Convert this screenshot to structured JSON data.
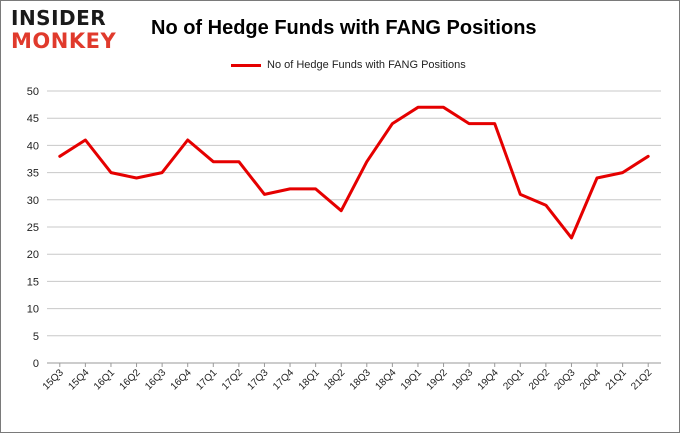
{
  "logo": {
    "line1": "INSIDER",
    "line2": "MONKEY"
  },
  "colors": {
    "series": "#e50000",
    "grid": "#c8c8c8",
    "logo_accent": "#e03a2c"
  },
  "chart_data": {
    "type": "line",
    "title": "No of Hedge Funds with FANG Positions",
    "xlabel": "",
    "ylabel": "",
    "ylim": [
      0,
      50
    ],
    "yticks": [
      0,
      5,
      10,
      15,
      20,
      25,
      30,
      35,
      40,
      45,
      50
    ],
    "grid": true,
    "legend_position": "top-center",
    "categories": [
      "15Q3",
      "15Q4",
      "16Q1",
      "16Q2",
      "16Q3",
      "16Q4",
      "17Q1",
      "17Q2",
      "17Q3",
      "17Q4",
      "18Q1",
      "18Q2",
      "18Q3",
      "18Q4",
      "19Q1",
      "19Q2",
      "19Q3",
      "19Q4",
      "20Q1",
      "20Q2",
      "20Q3",
      "20Q4",
      "21Q1",
      "21Q2"
    ],
    "series": [
      {
        "name": "No of Hedge Funds with FANG Positions",
        "values": [
          38,
          41,
          35,
          34,
          35,
          41,
          37,
          37,
          31,
          32,
          32,
          28,
          37,
          44,
          47,
          47,
          44,
          44,
          31,
          29,
          23,
          34,
          35,
          38
        ]
      }
    ]
  }
}
